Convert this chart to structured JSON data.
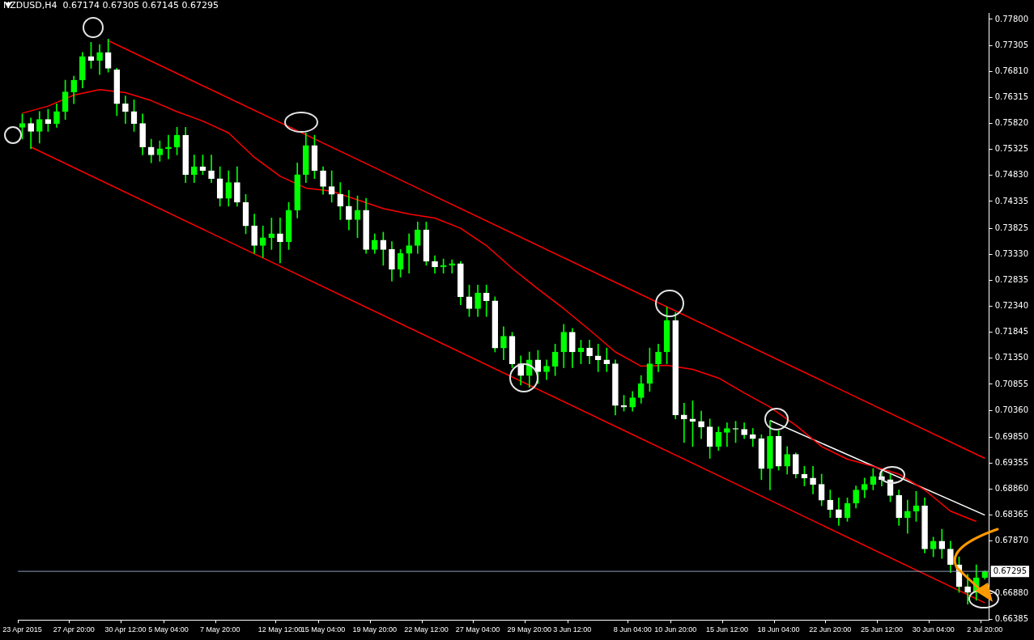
{
  "chart_data": {
    "type": "candlestick",
    "title": "NZDUSD,H4  0.67174 0.67305 0.67145 0.67295",
    "categories": [
      "23 Apr 2015",
      null,
      null,
      null,
      null,
      null,
      "27 Apr 20:00",
      null,
      null,
      null,
      null,
      null,
      "30 Apr 12:00",
      null,
      null,
      null,
      null,
      "5 May 04:00",
      null,
      null,
      null,
      null,
      null,
      "7 May 20:00",
      null,
      null,
      null,
      null,
      null,
      null,
      "12 May 12:00",
      null,
      null,
      null,
      null,
      "15 May 04:00",
      null,
      null,
      null,
      null,
      null,
      "19 May 20:00",
      null,
      null,
      null,
      null,
      null,
      "22 May 12:00",
      null,
      null,
      null,
      null,
      null,
      "27 May 04:00",
      null,
      null,
      null,
      null,
      null,
      "29 May 20:00",
      null,
      null,
      null,
      null,
      "3 Jun 12:00",
      null,
      null,
      null,
      null,
      null,
      null,
      "8 Jun 04:00",
      null,
      null,
      null,
      null,
      "10 Jun 20:00",
      null,
      null,
      null,
      null,
      null,
      "15 Jun 12:00",
      null,
      null,
      null,
      null,
      null,
      "18 Jun 04:00",
      null,
      null,
      null,
      null,
      null,
      "22 Jun 20:00",
      null,
      null,
      null,
      null,
      null,
      "25 Jun 12:00",
      null,
      null,
      null,
      null,
      null,
      "30 Jun 04:00",
      null,
      null,
      null,
      null,
      null,
      "2 Jul 20:00"
    ],
    "color": "#00ff00",
    "colors": [
      "#00ff00",
      "#ffffff",
      "#00ff00",
      "#ffffff",
      "#00ff00",
      "#00ff00",
      "#00ff00",
      "#00ff00",
      "#ffffff",
      "#00ff00",
      "#ffffff",
      "#ffffff",
      "#ffffff",
      "#ffffff",
      "#ffffff",
      "#ffffff",
      "#00ff00",
      "#00ff00",
      "#00ff00",
      "#ffffff",
      "#00ff00",
      "#ffffff",
      "#ffffff",
      "#ffffff",
      "#00ff00",
      "#ffffff",
      "#ffffff",
      "#ffffff",
      "#00ff00",
      "#00ff00",
      "#ffffff",
      "#00ff00",
      "#00ff00",
      "#00ff00",
      "#ffffff",
      "#ffffff",
      "#ffffff",
      "#ffffff",
      "#ffffff",
      "#00ff00",
      "#ffffff",
      "#00ff00",
      "#ffffff",
      "#ffffff",
      "#00ff00",
      "#00ff00",
      "#00ff00",
      "#ffffff",
      "#ffffff",
      "#00ff00",
      "#00ff00",
      "#ffffff",
      "#ffffff",
      "#00ff00",
      "#ffffff",
      "#ffffff",
      "#00ff00",
      "#ffffff",
      "#ffffff",
      "#00ff00",
      "#ffffff",
      "#00ff00",
      "#00ff00",
      "#00ff00",
      "#ffffff",
      "#00ff00",
      "#ffffff",
      "#ffffff",
      "#ffffff",
      "#ffffff",
      "#ffffff",
      "#00ff00",
      "#00ff00",
      "#00ff00",
      "#00ff00",
      "#00ff00",
      "#ffffff",
      "#ffffff",
      "#ffffff",
      "#ffffff",
      "#ffffff",
      "#00ff00",
      "#00ff00",
      "#ffffff",
      "#ffffff",
      "#ffffff",
      "#ffffff",
      "#00ff00",
      "#ffffff",
      "#00ff00",
      "#ffffff",
      "#ffffff",
      "#ffffff",
      "#ffffff",
      "#ffffff",
      "#ffffff",
      "#00ff00",
      "#00ff00",
      "#00ff00",
      "#00ff00",
      "#ffffff",
      "#ffffff",
      "#ffffff",
      "#00ff00",
      "#00ff00",
      "#ffffff",
      "#00ff00",
      "#ffffff",
      "#ffffff",
      "#ffffff",
      "#ffffff",
      "#00ff00",
      "#00ff00"
    ],
    "ohlc": [
      [
        0.75745,
        0.76,
        0.7552,
        0.7582
      ],
      [
        0.7582,
        0.75925,
        0.7534,
        0.7567
      ],
      [
        0.7567,
        0.76045,
        0.75445,
        0.75895
      ],
      [
        0.75895,
        0.7609,
        0.7567,
        0.7582
      ],
      [
        0.7582,
        0.76195,
        0.75745,
        0.76045
      ],
      [
        0.76045,
        0.76645,
        0.75895,
        0.7642
      ],
      [
        0.7642,
        0.7672,
        0.76195,
        0.76645
      ],
      [
        0.76645,
        0.7717,
        0.76495,
        0.77095
      ],
      [
        0.77095,
        0.77365,
        0.7687,
        0.7702
      ],
      [
        0.7702,
        0.7732,
        0.7675,
        0.7717
      ],
      [
        0.7717,
        0.77425,
        0.76795,
        0.7687
      ],
      [
        0.7684,
        0.7687,
        0.7597,
        0.76195
      ],
      [
        0.76195,
        0.76345,
        0.7582,
        0.76045
      ],
      [
        0.76045,
        0.7627,
        0.7567,
        0.7582
      ],
      [
        0.7582,
        0.76,
        0.7522,
        0.7537
      ],
      [
        0.7537,
        0.7552,
        0.7507,
        0.7522
      ],
      [
        0.7522,
        0.7549,
        0.751,
        0.7534
      ],
      [
        0.7534,
        0.75595,
        0.75145,
        0.7537
      ],
      [
        0.7537,
        0.75745,
        0.7522,
        0.75595
      ],
      [
        0.75595,
        0.75745,
        0.74695,
        0.74845
      ],
      [
        0.74845,
        0.7522,
        0.74695,
        0.74995
      ],
      [
        0.74995,
        0.7522,
        0.74845,
        0.7492
      ],
      [
        0.7492,
        0.7522,
        0.74695,
        0.7477
      ],
      [
        0.7477,
        0.74995,
        0.74245,
        0.74395
      ],
      [
        0.74395,
        0.7492,
        0.74245,
        0.74695
      ],
      [
        0.74695,
        0.74995,
        0.74245,
        0.7432
      ],
      [
        0.7432,
        0.7447,
        0.7372,
        0.7387
      ],
      [
        0.7387,
        0.74095,
        0.73345,
        0.73495
      ],
      [
        0.73495,
        0.7387,
        0.7327,
        0.73645
      ],
      [
        0.73645,
        0.7402,
        0.7342,
        0.7372
      ],
      [
        0.7372,
        0.7402,
        0.73165,
        0.7357
      ],
      [
        0.7357,
        0.7432,
        0.7342,
        0.7417
      ],
      [
        0.7417,
        0.7507,
        0.7402,
        0.74845
      ],
      [
        0.74845,
        0.7564,
        0.74695,
        0.754
      ],
      [
        0.754,
        0.75595,
        0.7477,
        0.7492
      ],
      [
        0.7492,
        0.74995,
        0.7447,
        0.7462
      ],
      [
        0.7462,
        0.7492,
        0.7432,
        0.7447
      ],
      [
        0.7447,
        0.74695,
        0.7399,
        0.74245
      ],
      [
        0.74245,
        0.74545,
        0.73795,
        0.7399
      ],
      [
        0.7399,
        0.7444,
        0.73645,
        0.7417
      ],
      [
        0.7417,
        0.74395,
        0.73345,
        0.7342
      ],
      [
        0.7342,
        0.7372,
        0.73345,
        0.736
      ],
      [
        0.736,
        0.7375,
        0.7312,
        0.7342
      ],
      [
        0.7342,
        0.7357,
        0.7282,
        0.73045
      ],
      [
        0.73045,
        0.7342,
        0.72895,
        0.73345
      ],
      [
        0.73345,
        0.7372,
        0.7297,
        0.73495
      ],
      [
        0.73495,
        0.73945,
        0.73345,
        0.73795
      ],
      [
        0.73795,
        0.73945,
        0.7312,
        0.73195
      ],
      [
        0.73195,
        0.733,
        0.7297,
        0.7309
      ],
      [
        0.7309,
        0.7324,
        0.7297,
        0.7312
      ],
      [
        0.7312,
        0.73225,
        0.7297,
        0.7315
      ],
      [
        0.7315,
        0.73195,
        0.7237,
        0.7252
      ],
      [
        0.7252,
        0.72745,
        0.72145,
        0.72295
      ],
      [
        0.72295,
        0.72745,
        0.72145,
        0.72595
      ],
      [
        0.72595,
        0.72745,
        0.72145,
        0.72445
      ],
      [
        0.72445,
        0.7252,
        0.7147,
        0.71545
      ],
      [
        0.71545,
        0.7195,
        0.7132,
        0.7177
      ],
      [
        0.7177,
        0.71845,
        0.7117,
        0.71245
      ],
      [
        0.71245,
        0.71395,
        0.7084,
        0.7102
      ],
      [
        0.7102,
        0.7147,
        0.70795,
        0.7132
      ],
      [
        0.7132,
        0.715,
        0.7087,
        0.71095
      ],
      [
        0.71095,
        0.7132,
        0.70945,
        0.712
      ],
      [
        0.712,
        0.7162,
        0.7102,
        0.7147
      ],
      [
        0.7147,
        0.71995,
        0.7117,
        0.71845
      ],
      [
        0.71845,
        0.7192,
        0.7117,
        0.7147
      ],
      [
        0.7147,
        0.71695,
        0.71245,
        0.71545
      ],
      [
        0.71545,
        0.71695,
        0.71245,
        0.71395
      ],
      [
        0.71395,
        0.7162,
        0.71095,
        0.7132
      ],
      [
        0.7132,
        0.71545,
        0.71095,
        0.71245
      ],
      [
        0.71245,
        0.7132,
        0.7027,
        0.7045
      ],
      [
        0.7045,
        0.70645,
        0.70345,
        0.7042
      ],
      [
        0.7042,
        0.7072,
        0.70345,
        0.706
      ],
      [
        0.706,
        0.7102,
        0.70495,
        0.7087
      ],
      [
        0.7087,
        0.71545,
        0.7072,
        0.71245
      ],
      [
        0.71245,
        0.7162,
        0.71095,
        0.7147
      ],
      [
        0.7147,
        0.72325,
        0.71245,
        0.7207
      ],
      [
        0.7207,
        0.7222,
        0.70195,
        0.7027
      ],
      [
        0.7027,
        0.70495,
        0.69745,
        0.70195
      ],
      [
        0.70195,
        0.7054,
        0.6967,
        0.7015
      ],
      [
        0.7015,
        0.70345,
        0.6982,
        0.70045
      ],
      [
        0.70045,
        0.70195,
        0.69445,
        0.6967
      ],
      [
        0.6967,
        0.70045,
        0.69595,
        0.6994
      ],
      [
        0.6994,
        0.7012,
        0.6967,
        0.70015
      ],
      [
        0.70015,
        0.7015,
        0.69745,
        0.7
      ],
      [
        0.7,
        0.7012,
        0.6982,
        0.69895
      ],
      [
        0.69895,
        0.70015,
        0.6967,
        0.6982
      ],
      [
        0.6982,
        0.69895,
        0.6904,
        0.6925
      ],
      [
        0.6925,
        0.70165,
        0.68845,
        0.69865
      ],
      [
        0.69865,
        0.6997,
        0.6922,
        0.69295
      ],
      [
        0.69295,
        0.6967,
        0.69145,
        0.6952
      ],
      [
        0.6952,
        0.6955,
        0.6907,
        0.69145
      ],
      [
        0.69145,
        0.69295,
        0.6892,
        0.6907
      ],
      [
        0.6907,
        0.69295,
        0.6877,
        0.6895
      ],
      [
        0.6895,
        0.69145,
        0.68545,
        0.6865
      ],
      [
        0.6865,
        0.68845,
        0.6832,
        0.6847
      ],
      [
        0.6847,
        0.68695,
        0.6817,
        0.6832
      ],
      [
        0.6832,
        0.68695,
        0.68245,
        0.6859
      ],
      [
        0.6859,
        0.6892,
        0.685,
        0.68845
      ],
      [
        0.68845,
        0.6907,
        0.68695,
        0.6895
      ],
      [
        0.6895,
        0.6925,
        0.68845,
        0.691
      ],
      [
        0.691,
        0.6922,
        0.6892,
        0.6904
      ],
      [
        0.6904,
        0.69145,
        0.6862,
        0.6874
      ],
      [
        0.6874,
        0.68845,
        0.6817,
        0.6832
      ],
      [
        0.6832,
        0.6865,
        0.6802,
        0.6844
      ],
      [
        0.6844,
        0.68815,
        0.68245,
        0.68545
      ],
      [
        0.68545,
        0.68695,
        0.67645,
        0.6772
      ],
      [
        0.6772,
        0.67945,
        0.6757,
        0.6787
      ],
      [
        0.6787,
        0.68095,
        0.6754,
        0.6772
      ],
      [
        0.6772,
        0.6787,
        0.6727,
        0.6742
      ],
      [
        0.6742,
        0.6757,
        0.66895,
        0.67
      ],
      [
        0.67,
        0.6724,
        0.6667,
        0.66895
      ],
      [
        0.66895,
        0.6742,
        0.66745,
        0.67174
      ],
      [
        0.67174,
        0.67305,
        0.67145,
        0.67295
      ]
    ],
    "series": [
      {
        "type": "line",
        "color": "#ff0000",
        "values": [
          0.76015,
          null,
          null,
          0.7615,
          null,
          null,
          0.7636,
          null,
          null,
          0.76465,
          null,
          null,
          0.76405,
          null,
          null,
          0.76255,
          null,
          null,
          0.76045,
          null,
          null,
          0.75865,
          null,
          null,
          0.7564,
          null,
          null,
          0.75175,
          null,
          null,
          0.74815,
          null,
          null,
          0.7459,
          null,
          null,
          0.7453,
          null,
          null,
          0.74365,
          null,
          null,
          0.742,
          null,
          null,
          0.74095,
          null,
          null,
          0.7402,
          null,
          null,
          0.73825,
          null,
          null,
          0.73495,
          null,
          null,
          0.7306,
          null,
          null,
          0.7267,
          null,
          null,
          0.72295,
          null,
          null,
          0.7189,
          null,
          null,
          0.7147,
          null,
          null,
          0.712,
          null,
          null,
          0.71215,
          null,
          null,
          0.7114,
          null,
          null,
          0.70975,
          null,
          null,
          0.7069,
          null,
          null,
          0.7042,
          null,
          null,
          0.70075,
          null,
          null,
          0.6967,
          null,
          null,
          0.6943,
          null,
          null,
          0.69295,
          null,
          null,
          0.69145,
          null,
          null,
          0.68845,
          null,
          null,
          0.6844,
          null,
          null,
          0.68245,
          null
        ]
      },
      {
        "type": "line",
        "color": "#ff0000",
        "values": [
          null,
          null,
          null,
          null,
          null,
          null,
          null,
          null,
          null,
          null,
          0.77395,
          null,
          null,
          null,
          null,
          null,
          null,
          null,
          null,
          null,
          null,
          null,
          null,
          null,
          null,
          null,
          null,
          null,
          null,
          null,
          null,
          null,
          null,
          null,
          null,
          null,
          null,
          null,
          null,
          null,
          null,
          null,
          null,
          null,
          null,
          null,
          null,
          null,
          null,
          null,
          null,
          null,
          null,
          null,
          null,
          null,
          null,
          null,
          null,
          null,
          null,
          null,
          null,
          null,
          null,
          null,
          null,
          null,
          null,
          null,
          null,
          null,
          null,
          null,
          null,
          null,
          null,
          null,
          null,
          null,
          null,
          null,
          null,
          null,
          null,
          null,
          null,
          null,
          null,
          null,
          null,
          null,
          null,
          null,
          null,
          null,
          null,
          null,
          null,
          null,
          null,
          null,
          null,
          null,
          null,
          null,
          null,
          null,
          null,
          null,
          null,
          null,
          0.69445
        ]
      },
      {
        "type": "line",
        "color": "#ff0000",
        "values": [
          null,
          0.7537,
          null,
          null,
          null,
          null,
          null,
          null,
          null,
          null,
          null,
          null,
          null,
          null,
          null,
          null,
          null,
          null,
          null,
          null,
          null,
          null,
          null,
          null,
          null,
          null,
          null,
          null,
          null,
          null,
          null,
          null,
          null,
          null,
          null,
          null,
          null,
          null,
          null,
          null,
          null,
          null,
          null,
          null,
          null,
          null,
          null,
          null,
          null,
          null,
          null,
          null,
          null,
          null,
          null,
          null,
          null,
          null,
          null,
          null,
          null,
          null,
          null,
          null,
          null,
          null,
          null,
          null,
          null,
          null,
          null,
          null,
          null,
          null,
          null,
          null,
          null,
          null,
          null,
          null,
          null,
          null,
          null,
          null,
          null,
          null,
          null,
          null,
          null,
          null,
          null,
          null,
          null,
          null,
          null,
          null,
          null,
          null,
          null,
          null,
          null,
          null,
          null,
          null,
          null,
          null,
          null,
          null,
          null,
          null,
          null,
          null,
          0.66695
        ]
      },
      {
        "type": "line",
        "color": "#ffffff",
        "values": [
          null,
          null,
          null,
          null,
          null,
          null,
          null,
          null,
          null,
          null,
          null,
          null,
          null,
          null,
          null,
          null,
          null,
          null,
          null,
          null,
          null,
          null,
          null,
          null,
          null,
          null,
          null,
          null,
          null,
          null,
          null,
          null,
          null,
          null,
          null,
          null,
          null,
          null,
          null,
          null,
          null,
          null,
          null,
          null,
          null,
          null,
          null,
          null,
          null,
          null,
          null,
          null,
          null,
          null,
          null,
          null,
          null,
          null,
          null,
          null,
          null,
          null,
          null,
          null,
          null,
          null,
          null,
          null,
          null,
          null,
          null,
          null,
          null,
          null,
          null,
          null,
          null,
          null,
          null,
          null,
          null,
          null,
          null,
          null,
          null,
          null,
          null,
          0.70165,
          null,
          null,
          null,
          null,
          null,
          null,
          null,
          null,
          null,
          null,
          null,
          null,
          null,
          null,
          null,
          null,
          null,
          null,
          null,
          null,
          null,
          null,
          null,
          null,
          0.68365
        ]
      }
    ],
    "ylim": [
      0.6637,
      0.7792
    ],
    "yticks": [
      {
        "value": 0.778,
        "label": "0.77800"
      },
      {
        "value": 0.77305,
        "label": "0.77305"
      },
      {
        "value": 0.7681,
        "label": "0.76810"
      },
      {
        "value": 0.76315,
        "label": "0.76315"
      },
      {
        "value": 0.7582,
        "label": "0.75820"
      },
      {
        "value": 0.75325,
        "label": "0.75325"
      },
      {
        "value": 0.7483,
        "label": "0.74830"
      },
      {
        "value": 0.74335,
        "label": "0.74335"
      },
      {
        "value": 0.73825,
        "label": "0.73825"
      },
      {
        "value": 0.7333,
        "label": "0.73330"
      },
      {
        "value": 0.72835,
        "label": "0.72835"
      },
      {
        "value": 0.7234,
        "label": "0.72340"
      },
      {
        "value": 0.71845,
        "label": "0.71845"
      },
      {
        "value": 0.7135,
        "label": "0.71350"
      },
      {
        "value": 0.70855,
        "label": "0.70855"
      },
      {
        "value": 0.7036,
        "label": "0.70360"
      },
      {
        "value": 0.6985,
        "label": "0.69850"
      },
      {
        "value": 0.69355,
        "label": "0.69355"
      },
      {
        "value": 0.6886,
        "label": "0.68860"
      },
      {
        "value": 0.68365,
        "label": "0.68365"
      },
      {
        "value": 0.6787,
        "label": "0.67870"
      },
      {
        "value": 0.6688,
        "label": "0.66880"
      },
      {
        "value": 0.66385,
        "label": "0.66385"
      }
    ],
    "ref_lines": [
      {
        "axis": "y",
        "value": 0.67295,
        "label": "0.67295",
        "color": "#8c9cb4"
      }
    ],
    "grid": false,
    "legend": false,
    "marker": "none"
  }
}
